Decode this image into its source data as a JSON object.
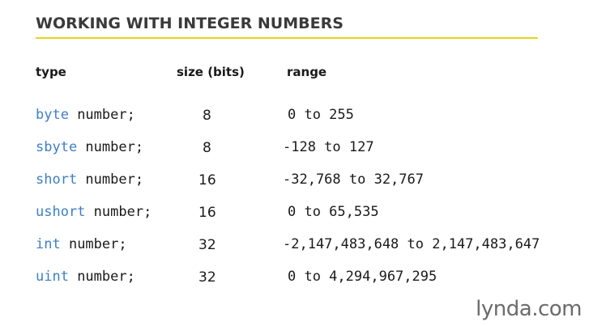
{
  "slide": {
    "title": "WORKING WITH INTEGER NUMBERS"
  },
  "headers": {
    "type": "type",
    "size": "size (bits)",
    "range": "range"
  },
  "rows": [
    {
      "keyword": "byte",
      "rest": " number;",
      "size": "8",
      "range": "0 to 255"
    },
    {
      "keyword": "sbyte",
      "rest": " number;",
      "size": "8",
      "range": "-128 to 127"
    },
    {
      "keyword": "short",
      "rest": " number;",
      "size": "16",
      "range": "-32,768 to 32,767"
    },
    {
      "keyword": "ushort",
      "rest": " number;",
      "size": "16",
      "range": "0 to 65,535"
    },
    {
      "keyword": "int",
      "rest": " number;",
      "size": "32",
      "range": "-2,147,483,648 to 2,147,483,647"
    },
    {
      "keyword": "uint",
      "rest": " number;",
      "size": "32",
      "range": "0 to 4,294,967,295"
    }
  ],
  "branding": {
    "logo_text": "lynda.com"
  },
  "colors": {
    "keyword": "#3d7fc6",
    "rule": "#e8d21f",
    "text": "#1a1a1a"
  }
}
